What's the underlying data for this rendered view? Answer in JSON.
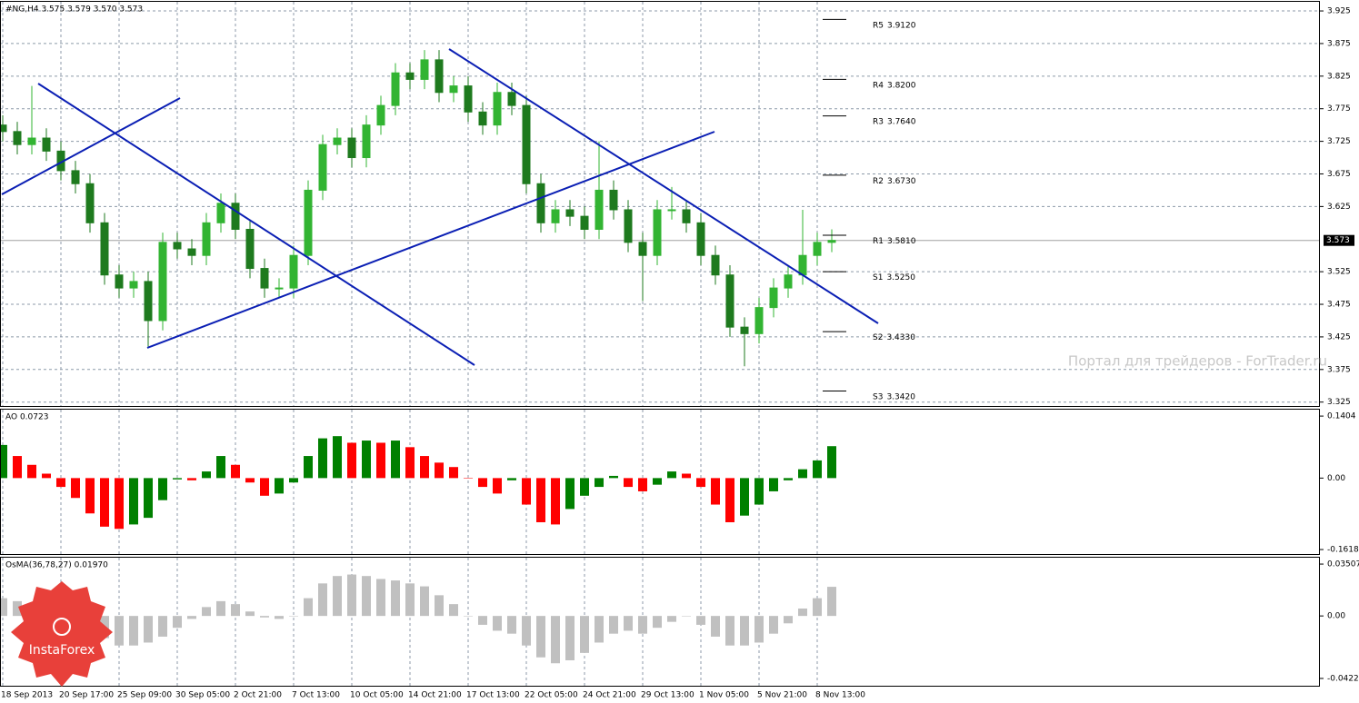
{
  "chart_data": [
    {
      "type": "candlestick",
      "title": "#NG,H4 3.575 3.579 3.570 3.573",
      "categories": [
        "18 Sep 2013",
        null,
        null,
        null,
        "20 Sep 17:00",
        null,
        null,
        null,
        "25 Sep 09:00",
        null,
        null,
        null,
        "30 Sep 05:00",
        null,
        null,
        null,
        "2 Oct 21:00",
        null,
        null,
        null,
        "7 Oct 13:00",
        null,
        null,
        null,
        "10 Oct 05:00",
        null,
        null,
        null,
        "14 Oct 21:00",
        null,
        null,
        null,
        "17 Oct 13:00",
        null,
        null,
        null,
        "22 Oct 05:00",
        null,
        null,
        null,
        "24 Oct 21:00",
        null,
        null,
        null,
        "29 Oct 13:00",
        null,
        null,
        null,
        "1 Nov 05:00",
        null,
        null,
        null,
        "5 Nov 21:00",
        null,
        null,
        null,
        "8 Nov 13:00",
        null
      ],
      "open": [
        3.75,
        3.74,
        3.72,
        3.73,
        3.71,
        3.68,
        3.66,
        3.6,
        3.52,
        3.5,
        3.51,
        3.45,
        3.57,
        3.56,
        3.55,
        3.6,
        3.63,
        3.59,
        3.53,
        3.5,
        3.5,
        3.55,
        3.65,
        3.72,
        3.73,
        3.7,
        3.75,
        3.78,
        3.83,
        3.82,
        3.85,
        3.8,
        3.81,
        3.77,
        3.75,
        3.8,
        3.78,
        3.66,
        3.6,
        3.62,
        3.61,
        3.59,
        3.65,
        3.62,
        3.57,
        3.55,
        3.62,
        3.62,
        3.6,
        3.55,
        3.52,
        3.44,
        3.43,
        3.47,
        3.5,
        3.52,
        3.55,
        3.57
      ],
      "high": [
        3.765,
        3.755,
        3.81,
        3.745,
        3.725,
        3.695,
        3.675,
        3.615,
        3.535,
        3.525,
        3.525,
        3.585,
        3.585,
        3.575,
        3.615,
        3.645,
        3.645,
        3.605,
        3.545,
        3.515,
        3.565,
        3.665,
        3.735,
        3.745,
        3.745,
        3.765,
        3.795,
        3.845,
        3.845,
        3.865,
        3.865,
        3.825,
        3.825,
        3.785,
        3.815,
        3.815,
        3.795,
        3.675,
        3.635,
        3.635,
        3.625,
        3.725,
        3.665,
        3.635,
        3.585,
        3.635,
        3.655,
        3.635,
        3.615,
        3.565,
        3.535,
        3.455,
        3.485,
        3.515,
        3.535,
        3.62,
        3.585,
        3.59
      ],
      "low": [
        3.725,
        3.705,
        3.705,
        3.695,
        3.665,
        3.645,
        3.585,
        3.505,
        3.485,
        3.485,
        3.41,
        3.435,
        3.545,
        3.535,
        3.535,
        3.585,
        3.575,
        3.515,
        3.485,
        3.485,
        3.485,
        3.535,
        3.635,
        3.705,
        3.685,
        3.685,
        3.735,
        3.765,
        3.805,
        3.805,
        3.785,
        3.785,
        3.755,
        3.735,
        3.735,
        3.765,
        3.645,
        3.585,
        3.585,
        3.595,
        3.575,
        3.575,
        3.605,
        3.555,
        3.48,
        3.535,
        3.605,
        3.585,
        3.535,
        3.505,
        3.425,
        3.38,
        3.415,
        3.455,
        3.485,
        3.505,
        3.535,
        3.555
      ],
      "close": [
        3.74,
        3.72,
        3.73,
        3.71,
        3.68,
        3.66,
        3.6,
        3.52,
        3.5,
        3.51,
        3.45,
        3.57,
        3.56,
        3.55,
        3.6,
        3.63,
        3.59,
        3.53,
        3.5,
        3.5,
        3.55,
        3.65,
        3.72,
        3.73,
        3.7,
        3.75,
        3.78,
        3.83,
        3.82,
        3.85,
        3.8,
        3.81,
        3.77,
        3.75,
        3.8,
        3.78,
        3.66,
        3.6,
        3.62,
        3.61,
        3.59,
        3.65,
        3.62,
        3.57,
        3.55,
        3.62,
        3.62,
        3.6,
        3.55,
        3.52,
        3.44,
        3.43,
        3.47,
        3.5,
        3.52,
        3.55,
        3.57,
        3.573
      ],
      "up_color": "#32b432",
      "down_color": "#1e7a1e",
      "ylim": [
        3.319,
        3.939
      ],
      "yticks": [
        3.925,
        3.875,
        3.825,
        3.775,
        3.725,
        3.675,
        3.625,
        3.525,
        3.475,
        3.425,
        3.375,
        3.325
      ],
      "grid": true,
      "levels": [
        {
          "name": "R5",
          "value": 3.912,
          "label": "3.9120"
        },
        {
          "name": "R4",
          "value": 3.82,
          "label": "3.8200"
        },
        {
          "name": "R3",
          "value": 3.764,
          "label": "3.7640"
        },
        {
          "name": "R2",
          "value": 3.673,
          "label": "3.6730"
        },
        {
          "name": "R1",
          "value": 3.581,
          "label": "3.5810"
        },
        {
          "name": "S1",
          "value": 3.525,
          "label": "3.5250"
        },
        {
          "name": "S2",
          "value": 3.433,
          "label": "3.4330"
        },
        {
          "name": "S3",
          "value": 3.342,
          "label": "3.3420"
        }
      ]
    },
    {
      "type": "bar",
      "title": "AO 0.0723",
      "values": [
        0.075,
        0.05,
        0.03,
        0.01,
        -0.02,
        -0.045,
        -0.08,
        -0.11,
        -0.115,
        -0.105,
        -0.09,
        -0.05,
        -0.003,
        -0.005,
        0.015,
        0.05,
        0.03,
        -0.01,
        -0.04,
        -0.035,
        -0.01,
        0.05,
        0.09,
        0.095,
        0.08,
        0.085,
        0.08,
        0.085,
        0.07,
        0.05,
        0.035,
        0.025,
        0.0,
        -0.02,
        -0.035,
        -0.005,
        -0.06,
        -0.1,
        -0.105,
        -0.07,
        -0.04,
        -0.02,
        0.005,
        -0.02,
        -0.03,
        -0.015,
        0.015,
        0.01,
        -0.02,
        -0.06,
        -0.1,
        -0.085,
        -0.06,
        -0.03,
        -0.005,
        0.02,
        0.04,
        0.0723
      ],
      "up_color": "#008000",
      "down_color": "#ff0000",
      "ylim": [
        -0.172,
        0.155
      ],
      "yticks": [
        0.1404,
        {
          "value": 0,
          "label": "0.00"
        },
        -0.1618
      ]
    },
    {
      "type": "bar",
      "title": "OsMA(36,78,27) 0.01970",
      "values": [
        0.012,
        0.01,
        0.008,
        0.005,
        0.0,
        -0.004,
        -0.01,
        -0.015,
        -0.02,
        -0.02,
        -0.018,
        -0.014,
        -0.008,
        -0.002,
        0.006,
        0.01,
        0.008,
        0.003,
        -0.001,
        -0.002,
        0.0,
        0.012,
        0.022,
        0.027,
        0.028,
        0.027,
        0.025,
        0.024,
        0.022,
        0.02,
        0.014,
        0.008,
        0.0,
        -0.006,
        -0.01,
        -0.012,
        -0.02,
        -0.028,
        -0.032,
        -0.03,
        -0.025,
        -0.018,
        -0.012,
        -0.01,
        -0.012,
        -0.008,
        -0.004,
        0.0,
        -0.006,
        -0.014,
        -0.02,
        -0.02,
        -0.018,
        -0.012,
        -0.005,
        0.005,
        0.012,
        0.0197
      ],
      "color": "#c0c0c0",
      "ylim": [
        -0.0472,
        0.0394
      ],
      "yticks": [
        0.03507,
        {
          "value": 0,
          "label": "0.00"
        },
        -0.04226
      ]
    }
  ],
  "watermark": "Портал для трейдеров - ForTrader.ru",
  "logo": "InstaForex"
}
